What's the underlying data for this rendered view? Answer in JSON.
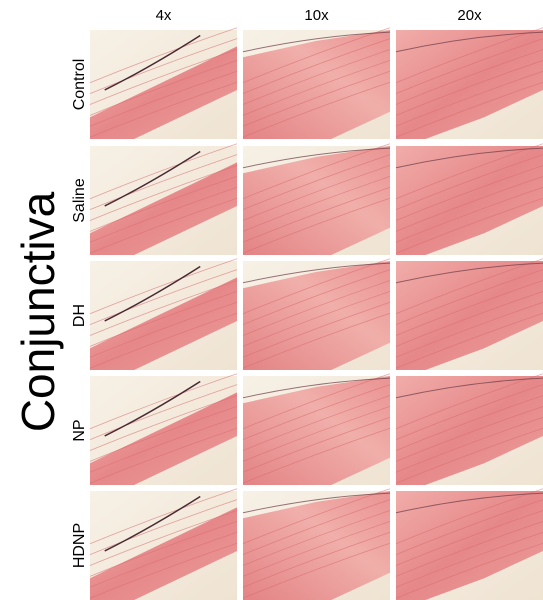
{
  "title": "Conjunctiva",
  "columns": [
    "4x",
    "10x",
    "20x"
  ],
  "rows": [
    "Control",
    "Saline",
    "DH",
    "NP",
    "HDNP"
  ]
}
